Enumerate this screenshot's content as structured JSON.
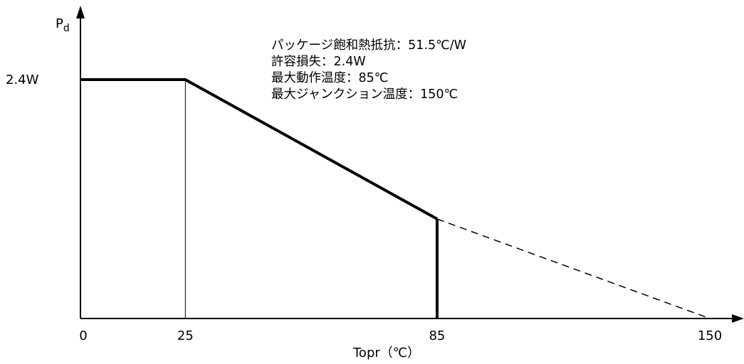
{
  "chart_data": {
    "type": "line",
    "title": "",
    "xlabel": "Topr（℃）",
    "ylabel": "P",
    "ylabel_subscript": "d",
    "x_ticks": [
      "0",
      "25",
      "85",
      "150"
    ],
    "y_ticks": [
      "2.4W"
    ],
    "xlim": [
      0,
      150
    ],
    "ylim": [
      0,
      2.4
    ],
    "grid": false,
    "series": [
      {
        "style": "solid",
        "points": [
          [
            0,
            2.4
          ],
          [
            25,
            2.4
          ],
          [
            85,
            1.0
          ]
        ]
      },
      {
        "style": "dashed",
        "points": [
          [
            85,
            1.0
          ],
          [
            150,
            0
          ]
        ]
      }
    ],
    "reference_lines": [
      {
        "x": 25,
        "from_y": 0,
        "to_y": 2.4,
        "weight": "thin"
      },
      {
        "x": 85,
        "from_y": 0,
        "to_y": 1.0,
        "weight": "thick"
      }
    ],
    "annotations": [
      "パッケージ飽和熱抵抗：51.5℃/W",
      "許容損失：2.4W",
      "最大動作温度：85℃",
      "最大ジャンクション温度：150℃"
    ]
  }
}
